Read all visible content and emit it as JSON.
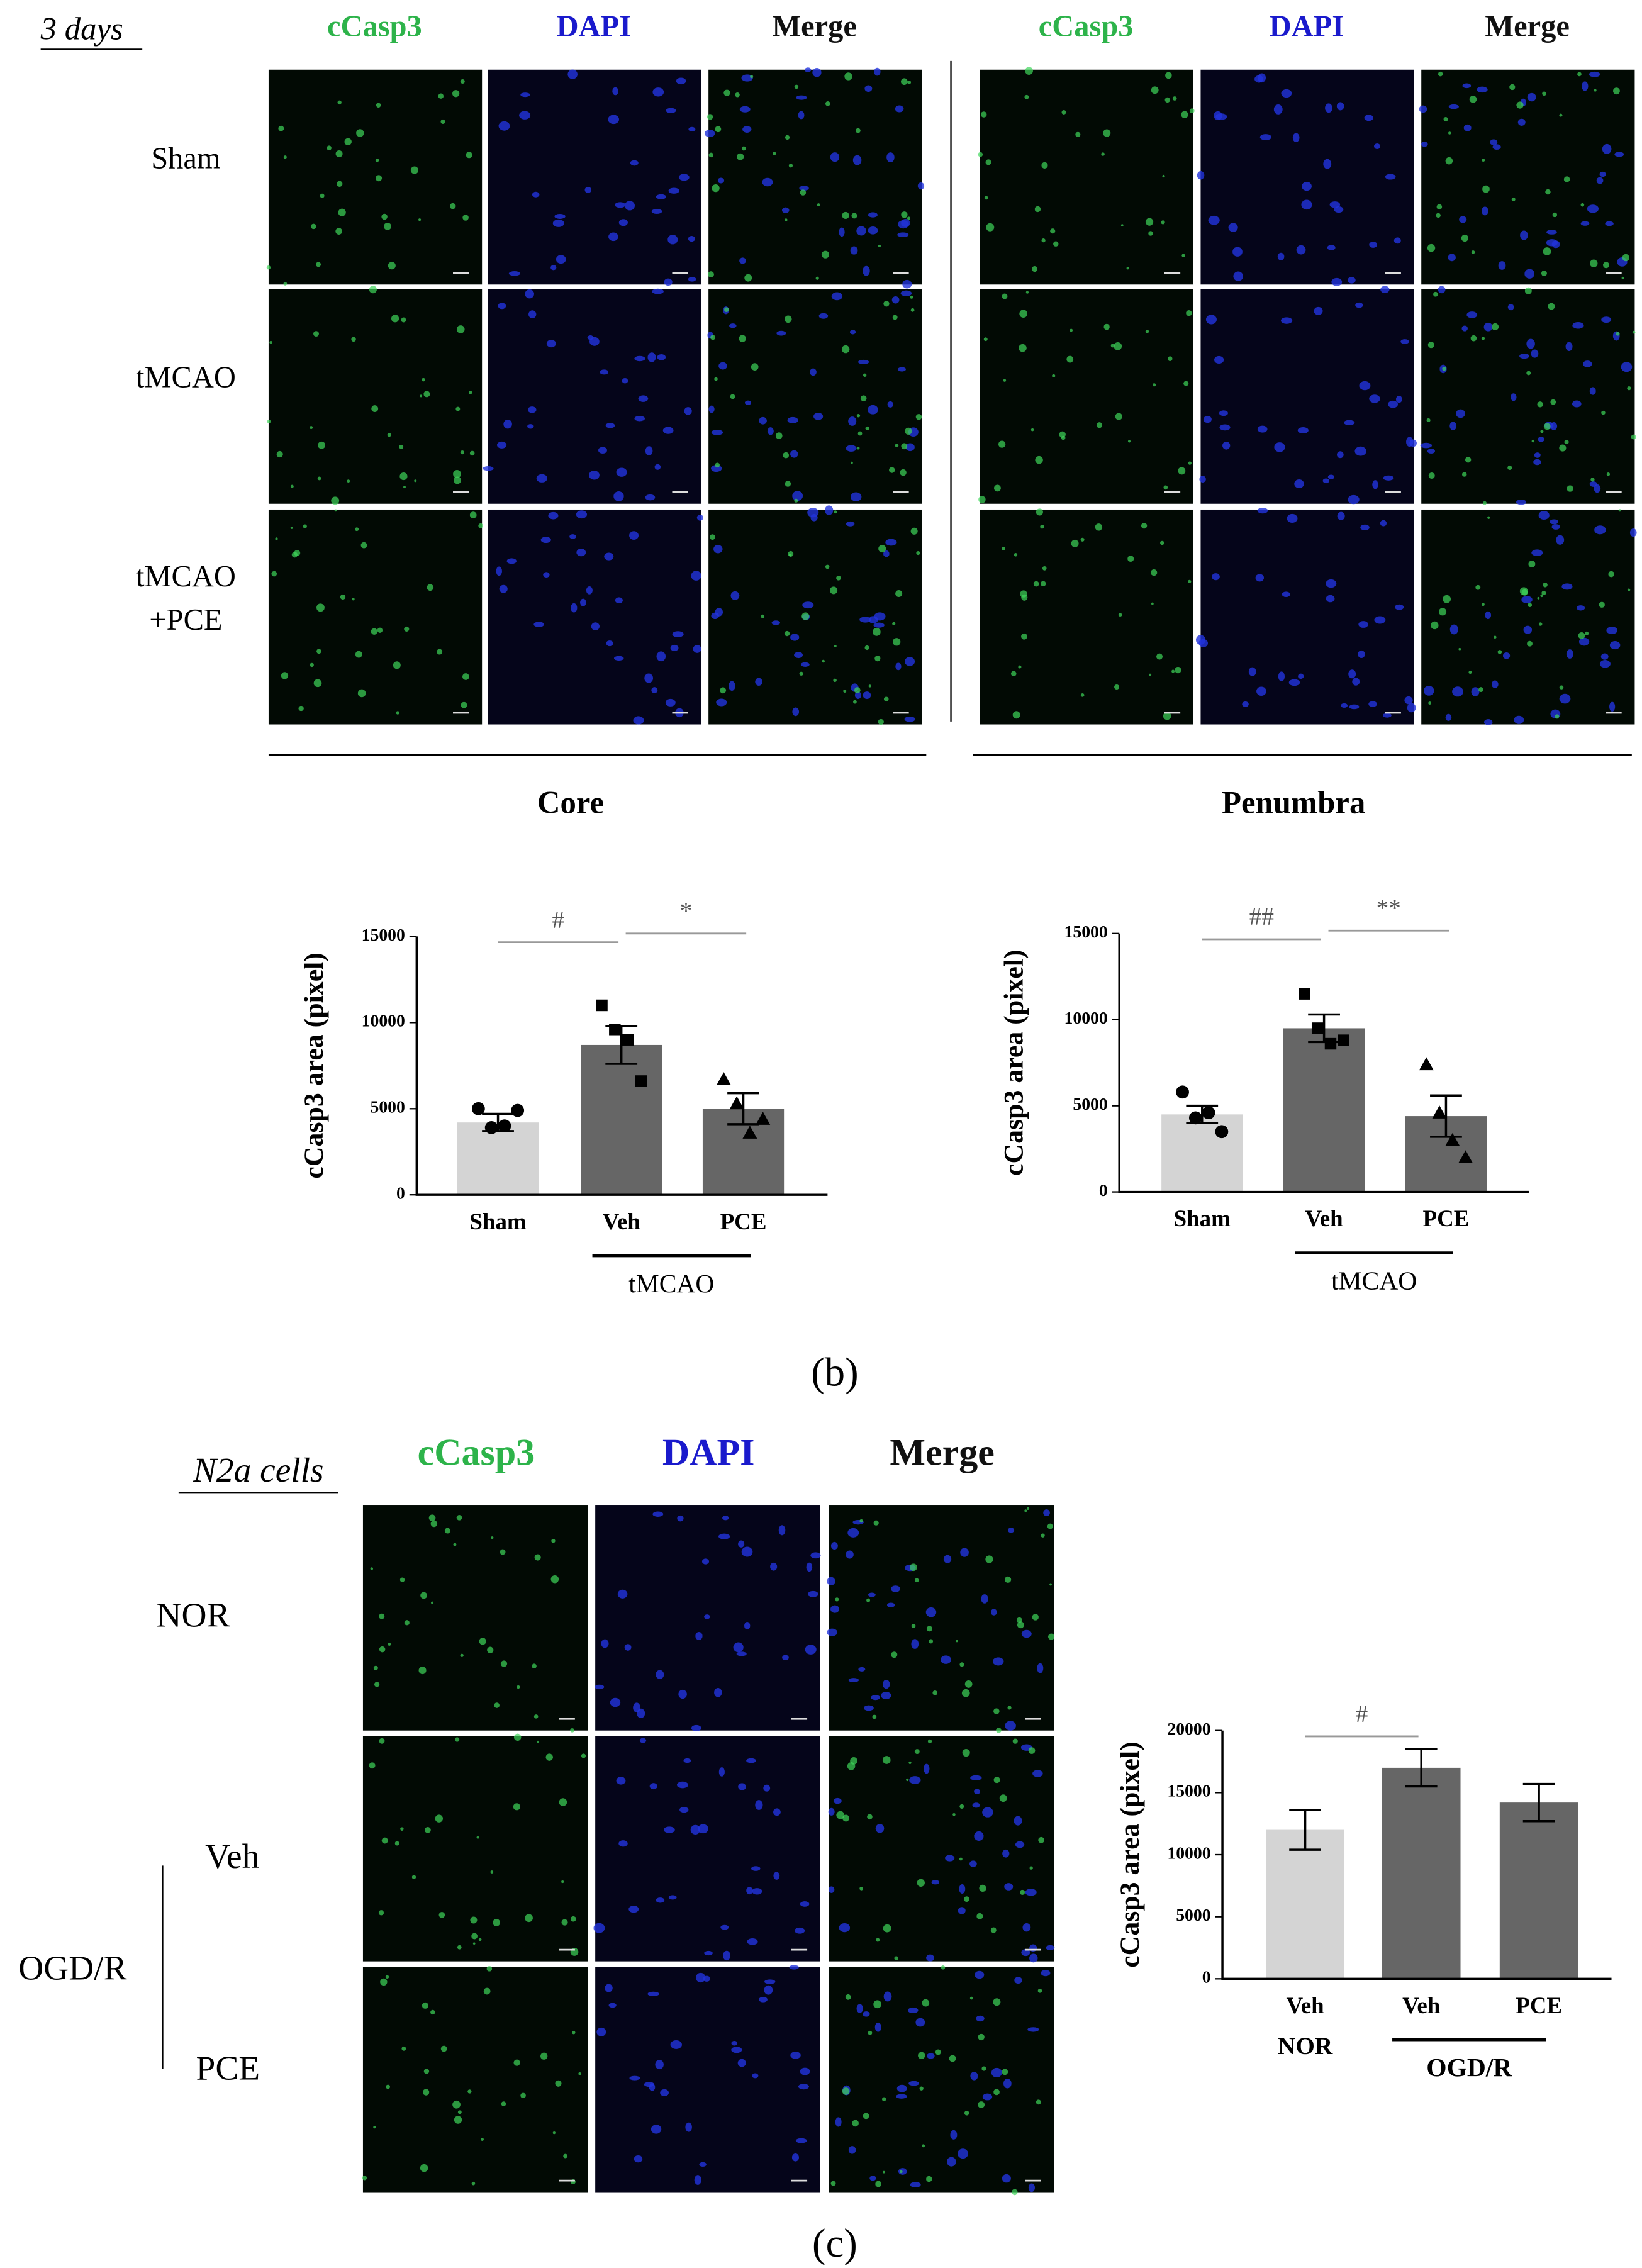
{
  "panel_b": {
    "title": "3 days",
    "channels": [
      "cCasp3",
      "DAPI",
      "Merge"
    ],
    "rows": [
      [
        "Sham"
      ],
      [
        "tMCAO"
      ],
      [
        "tMCAO",
        "+PCE"
      ]
    ],
    "regions": [
      "Core",
      "Penumbra"
    ],
    "label": "(b)"
  },
  "panel_c": {
    "title": "N2a cells",
    "channels": [
      "cCasp3",
      "DAPI",
      "Merge"
    ],
    "rows": [
      "NOR",
      "Veh",
      "PCE"
    ],
    "group": "OGD/R",
    "label": "(c)"
  },
  "chart_data": [
    {
      "type": "bar",
      "ylabel": "cCasp3 area (pixel)",
      "categories": [
        "Sham",
        "Veh",
        "PCE"
      ],
      "values": [
        4200,
        8700,
        5000
      ],
      "errors": [
        500,
        1100,
        900
      ],
      "points": [
        [
          5000,
          3900,
          4000,
          4900
        ],
        [
          11000,
          9600,
          9000,
          6600
        ],
        [
          6700,
          5300,
          3600,
          4400
        ]
      ],
      "markers": [
        "circle",
        "square",
        "triangle"
      ],
      "colors": [
        "#d4d4d4",
        "#666666",
        "#666666"
      ],
      "ylim": [
        0,
        15000
      ],
      "yticks": [
        0,
        5000,
        10000,
        15000
      ],
      "annotations": [
        "#",
        "*"
      ],
      "group_labels": [
        "tMCAO"
      ]
    },
    {
      "type": "bar",
      "ylabel": "cCasp3 area (pixel)",
      "categories": [
        "Sham",
        "Veh",
        "PCE"
      ],
      "values": [
        4500,
        9500,
        4400
      ],
      "errors": [
        500,
        800,
        1200
      ],
      "points": [
        [
          5800,
          4300,
          4600,
          3500
        ],
        [
          11500,
          9500,
          8600,
          8800
        ],
        [
          7400,
          4600,
          3000,
          2000
        ]
      ],
      "markers": [
        "circle",
        "square",
        "triangle"
      ],
      "colors": [
        "#d4d4d4",
        "#666666",
        "#666666"
      ],
      "ylim": [
        0,
        15000
      ],
      "yticks": [
        0,
        5000,
        10000,
        15000
      ],
      "annotations": [
        "##",
        "**"
      ],
      "group_labels": [
        "tMCAO"
      ]
    },
    {
      "type": "bar",
      "ylabel": "cCasp3 area (pixel)",
      "categories": [
        "Veh",
        "Veh",
        "PCE"
      ],
      "values": [
        12000,
        17000,
        14200
      ],
      "errors": [
        1600,
        1500,
        1500
      ],
      "colors": [
        "#d4d4d4",
        "#666666",
        "#666666"
      ],
      "ylim": [
        0,
        20000
      ],
      "yticks": [
        0,
        5000,
        10000,
        15000,
        20000
      ],
      "annotations": [
        "#"
      ],
      "group_labels": [
        "NOR",
        "OGD/R"
      ]
    }
  ]
}
